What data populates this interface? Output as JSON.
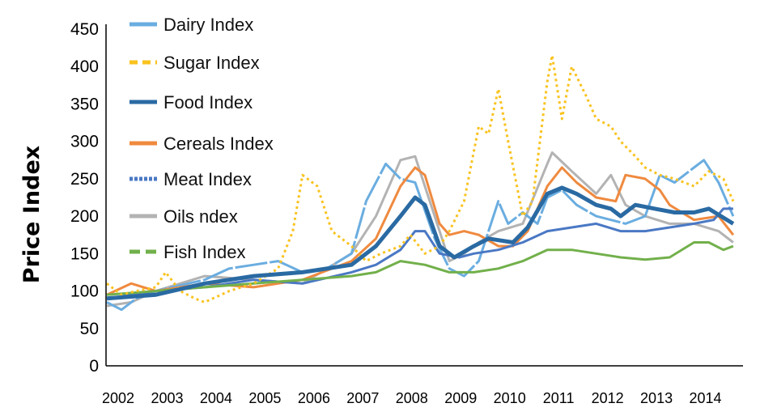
{
  "chart_data": {
    "type": "line",
    "title": "",
    "xlabel": "",
    "ylabel": "Price Index",
    "ylim": [
      0,
      450
    ],
    "xlim": [
      2002,
      2015
    ],
    "yticks": [
      0,
      50,
      100,
      150,
      200,
      250,
      300,
      350,
      400,
      450
    ],
    "xticks": [
      "2002",
      "2003",
      "2004",
      "2005",
      "2006",
      "2007",
      "2008",
      "2009",
      "2010",
      "2011",
      "2012",
      "2013",
      "2014"
    ],
    "grid": false,
    "legend_position": "top-left",
    "series": [
      {
        "name": "Dairy Index",
        "color": "#6aade0",
        "style": "dashed-long",
        "x": [
          2002,
          2002.3,
          2002.6,
          2003,
          2004,
          2004.5,
          2005,
          2005.5,
          2006,
          2006.5,
          2007,
          2007.3,
          2007.7,
          2008,
          2008.3,
          2008.7,
          2009,
          2009.3,
          2009.6,
          2009.8,
          2010,
          2010.2,
          2010.5,
          2010.8,
          2011,
          2011.3,
          2011.6,
          2012,
          2012.3,
          2012.6,
          2013,
          2013.3,
          2013.6,
          2014,
          2014.2,
          2014.5,
          2014.8
        ],
        "y": [
          85,
          75,
          90,
          100,
          115,
          130,
          135,
          140,
          125,
          130,
          150,
          220,
          270,
          250,
          245,
          170,
          130,
          120,
          140,
          180,
          220,
          190,
          205,
          190,
          225,
          235,
          215,
          200,
          195,
          190,
          200,
          255,
          245,
          265,
          275,
          245,
          200
        ]
      },
      {
        "name": "Sugar Index",
        "color": "#f9c31f",
        "style": "dotted",
        "x": [
          2002,
          2002.3,
          2002.6,
          2003,
          2003.2,
          2003.5,
          2003.8,
          2004,
          2004.5,
          2005,
          2005.5,
          2005.8,
          2006,
          2006.3,
          2006.6,
          2007,
          2007.3,
          2007.6,
          2008,
          2008.2,
          2008.5,
          2008.8,
          2009,
          2009.3,
          2009.6,
          2009.8,
          2010,
          2010.2,
          2010.5,
          2010.7,
          2011,
          2011.1,
          2011.3,
          2011.5,
          2011.8,
          2012,
          2012.3,
          2012.5,
          2012.8,
          2013,
          2013.3,
          2013.6,
          2014,
          2014.3,
          2014.6,
          2014.8
        ],
        "y": [
          110,
          95,
          100,
          105,
          125,
          100,
          90,
          85,
          100,
          110,
          130,
          180,
          255,
          240,
          180,
          160,
          140,
          150,
          160,
          175,
          150,
          160,
          180,
          220,
          320,
          310,
          370,
          300,
          200,
          220,
          380,
          415,
          330,
          400,
          360,
          330,
          320,
          300,
          280,
          265,
          255,
          250,
          240,
          260,
          250,
          220
        ]
      },
      {
        "name": "Food Index",
        "color": "#2a6aa3",
        "style": "solid-thick",
        "x": [
          2002,
          2003,
          2004,
          2005,
          2006,
          2007,
          2007.5,
          2008,
          2008.3,
          2008.5,
          2008.8,
          2009.1,
          2009.5,
          2009.8,
          2010.3,
          2010.6,
          2011,
          2011.3,
          2011.6,
          2012,
          2012.3,
          2012.5,
          2012.8,
          2013.2,
          2013.6,
          2014,
          2014.3,
          2014.8
        ],
        "y": [
          90,
          95,
          110,
          120,
          125,
          135,
          160,
          200,
          225,
          215,
          160,
          145,
          160,
          170,
          165,
          185,
          230,
          238,
          230,
          215,
          210,
          200,
          215,
          210,
          205,
          205,
          210,
          190
        ]
      },
      {
        "name": "Cereals Index",
        "color": "#ef8a3f",
        "style": "solid",
        "x": [
          2002,
          2002.5,
          2003,
          2004,
          2005,
          2006,
          2007,
          2007.5,
          2008,
          2008.3,
          2008.5,
          2008.8,
          2009,
          2009.3,
          2009.6,
          2010,
          2010.3,
          2010.6,
          2011,
          2011.3,
          2011.6,
          2012,
          2012.4,
          2012.6,
          2013,
          2013.3,
          2013.5,
          2014,
          2014.5,
          2014.8
        ],
        "y": [
          95,
          110,
          100,
          110,
          105,
          115,
          140,
          170,
          240,
          265,
          255,
          190,
          175,
          180,
          175,
          160,
          160,
          180,
          240,
          265,
          245,
          225,
          220,
          255,
          250,
          235,
          215,
          195,
          200,
          175
        ]
      },
      {
        "name": "Meat Index",
        "color": "#4a78c4",
        "style": "solid",
        "x": [
          2002,
          2003,
          2004,
          2005,
          2006,
          2007,
          2007.5,
          2008,
          2008.3,
          2008.5,
          2008.8,
          2009.2,
          2009.5,
          2010,
          2010.5,
          2011,
          2011.5,
          2012,
          2012.5,
          2013,
          2013.5,
          2014,
          2014.4,
          2014.6,
          2014.8
        ],
        "y": [
          90,
          100,
          105,
          115,
          110,
          125,
          135,
          155,
          180,
          180,
          150,
          145,
          150,
          155,
          165,
          180,
          185,
          190,
          180,
          180,
          185,
          190,
          195,
          210,
          210
        ]
      },
      {
        "name": "Oils ndex",
        "color": "#b3b3b3",
        "style": "solid",
        "x": [
          2002,
          2002.5,
          2003,
          2004,
          2005,
          2006,
          2007,
          2007.5,
          2008,
          2008.3,
          2008.6,
          2009,
          2009.3,
          2009.6,
          2010,
          2010.5,
          2011,
          2011.1,
          2011.5,
          2012,
          2012.3,
          2012.6,
          2013,
          2013.5,
          2014,
          2014.5,
          2014.8
        ],
        "y": [
          80,
          85,
          100,
          120,
          115,
          110,
          150,
          200,
          275,
          280,
          220,
          140,
          150,
          165,
          180,
          190,
          270,
          285,
          260,
          230,
          255,
          215,
          200,
          190,
          190,
          180,
          165
        ]
      },
      {
        "name": "Fish Index",
        "color": "#72b04b",
        "style": "solid",
        "x": [
          2002,
          2003,
          2004,
          2005,
          2006,
          2007,
          2007.5,
          2008,
          2008.5,
          2009,
          2009.5,
          2010,
          2010.5,
          2011,
          2011.5,
          2012,
          2012.5,
          2013,
          2013.5,
          2014,
          2014.3,
          2014.6,
          2014.8
        ],
        "y": [
          95,
          100,
          105,
          110,
          115,
          120,
          125,
          140,
          135,
          125,
          125,
          130,
          140,
          155,
          155,
          150,
          145,
          142,
          145,
          165,
          165,
          155,
          160
        ]
      }
    ]
  }
}
